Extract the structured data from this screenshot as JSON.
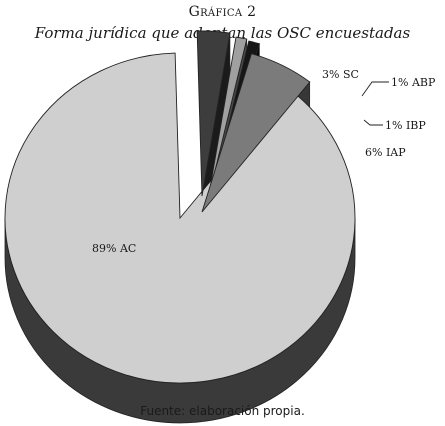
{
  "title": "Gráfica 2",
  "subtitle": "Forma jurídica que adoptan las OSC encuestadas",
  "source": "Fuente: elaboración propia.",
  "chart_data": {
    "type": "pie",
    "style": "3d-exploded",
    "categories": [
      "AC",
      "SC",
      "ABP",
      "IBP",
      "IAP"
    ],
    "values": [
      89,
      3,
      1,
      1,
      6
    ],
    "labels": [
      "89% AC",
      "3% SC",
      "1% ABP",
      "1% IBP",
      "6% IAP"
    ],
    "colors": {
      "AC": "#cfcfcf",
      "SC": "#3d3d3d",
      "ABP": "#a0a0a0",
      "IBP": "#161616",
      "IAP": "#7b7b7b"
    }
  }
}
